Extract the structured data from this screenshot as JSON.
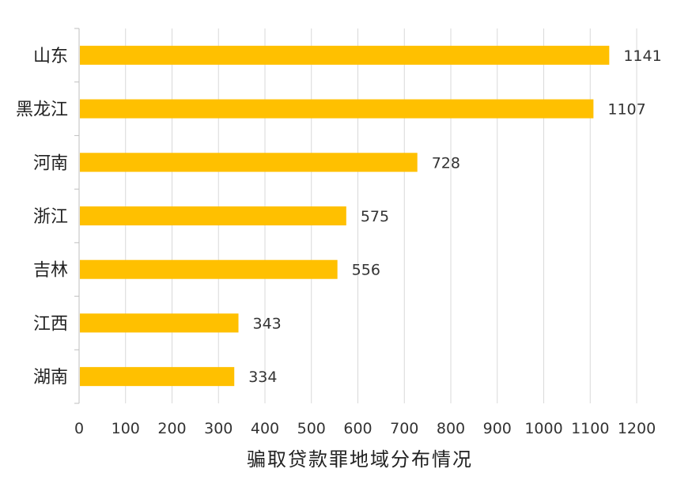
{
  "chart_data": {
    "type": "bar",
    "orientation": "horizontal",
    "categories": [
      "山东",
      "黑龙江",
      "河南",
      "浙江",
      "吉林",
      "江西",
      "湖南"
    ],
    "values": [
      1141,
      1107,
      728,
      575,
      556,
      343,
      334
    ],
    "data_labels": [
      "1141",
      "1107",
      "728",
      "575",
      "556",
      "343",
      "334"
    ],
    "title": "",
    "xlabel": "骗取贷款罪地域分布情况",
    "ylabel": "",
    "xlim": [
      0,
      1200
    ],
    "x_ticks": [
      "0",
      "100",
      "200",
      "300",
      "400",
      "500",
      "600",
      "700",
      "800",
      "900",
      "1000",
      "1100",
      "1200"
    ],
    "grid": "vertical",
    "legend": "none",
    "bar_color": "#FFC000",
    "grid_color": "#D9D9D9"
  }
}
